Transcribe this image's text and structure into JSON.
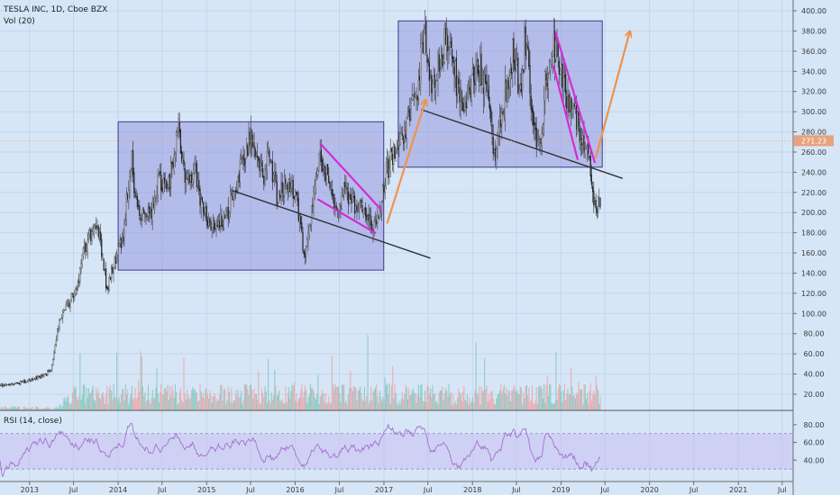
{
  "header": {
    "symbol": "TESLA INC, 1D, Cboe BZX",
    "volume_label": "Vol (20)"
  },
  "rsi": {
    "label": "RSI (14, close)",
    "ticks": [
      80,
      60,
      40
    ],
    "tick_labels": [
      "80.00",
      "60.00",
      "40.00"
    ],
    "band_color": "#c8b8f0",
    "line_color": "#a46fd1"
  },
  "chart_data": {
    "type": "candlestick",
    "y_ticks": [
      20,
      40,
      60,
      80,
      100,
      120,
      140,
      160,
      180,
      200,
      220,
      240,
      260,
      280,
      300,
      320,
      340,
      360,
      380,
      400
    ],
    "y_tick_labels": [
      "20.00",
      "40.00",
      "60.00",
      "80.00",
      "100.00",
      "120.00",
      "140.00",
      "160.00",
      "180.00",
      "200.00",
      "220.00",
      "240.00",
      "260.00",
      "280.00",
      "300.00",
      "320.00",
      "340.00",
      "360.00",
      "380.00",
      "400.00"
    ],
    "ylim": [
      10,
      405
    ],
    "x_range": [
      "2012-09-01",
      "2021-08-15"
    ],
    "x_ticks": [
      {
        "date": "2013-01-01",
        "label": "2013"
      },
      {
        "date": "2013-07-01",
        "label": "Jul"
      },
      {
        "date": "2014-01-01",
        "label": "2014"
      },
      {
        "date": "2014-07-01",
        "label": "Jul"
      },
      {
        "date": "2015-01-01",
        "label": "2015"
      },
      {
        "date": "2015-07-01",
        "label": "Jul"
      },
      {
        "date": "2016-01-01",
        "label": "2016"
      },
      {
        "date": "2016-07-01",
        "label": "Jul"
      },
      {
        "date": "2017-01-01",
        "label": "2017"
      },
      {
        "date": "2017-07-01",
        "label": "Jul"
      },
      {
        "date": "2018-01-01",
        "label": "2018"
      },
      {
        "date": "2018-07-01",
        "label": "Jul"
      },
      {
        "date": "2019-01-01",
        "label": "2019"
      },
      {
        "date": "2019-07-01",
        "label": "Jul"
      },
      {
        "date": "2020-01-01",
        "label": "2020"
      },
      {
        "date": "2020-07-01",
        "label": "Jul"
      },
      {
        "date": "2021-01-01",
        "label": "2021"
      },
      {
        "date": "2021-07-01",
        "label": "Jul"
      }
    ],
    "price_anchors": [
      [
        "2012-09-01",
        29
      ],
      [
        "2012-12-01",
        32
      ],
      [
        "2013-01-15",
        35
      ],
      [
        "2013-03-01",
        38
      ],
      [
        "2013-04-01",
        45
      ],
      [
        "2013-05-01",
        90
      ],
      [
        "2013-06-01",
        105
      ],
      [
        "2013-07-15",
        125
      ],
      [
        "2013-08-15",
        165
      ],
      [
        "2013-09-30",
        190
      ],
      [
        "2013-10-15",
        175
      ],
      [
        "2013-11-15",
        125
      ],
      [
        "2013-12-15",
        150
      ],
      [
        "2014-01-20",
        175
      ],
      [
        "2014-02-25",
        255
      ],
      [
        "2014-03-15",
        210
      ],
      [
        "2014-04-15",
        195
      ],
      [
        "2014-05-20",
        200
      ],
      [
        "2014-06-20",
        235
      ],
      [
        "2014-07-25",
        225
      ],
      [
        "2014-09-05",
        285
      ],
      [
        "2014-10-10",
        225
      ],
      [
        "2014-11-15",
        245
      ],
      [
        "2014-12-15",
        200
      ],
      [
        "2015-01-15",
        190
      ],
      [
        "2015-03-15",
        190
      ],
      [
        "2015-05-01",
        230
      ],
      [
        "2015-06-20",
        265
      ],
      [
        "2015-07-10",
        270
      ],
      [
        "2015-08-25",
        235
      ],
      [
        "2015-09-20",
        260
      ],
      [
        "2015-10-20",
        210
      ],
      [
        "2015-12-01",
        235
      ],
      [
        "2016-01-10",
        210
      ],
      [
        "2016-02-10",
        150
      ],
      [
        "2016-03-15",
        215
      ],
      [
        "2016-04-15",
        255
      ],
      [
        "2016-06-01",
        220
      ],
      [
        "2016-06-25",
        195
      ],
      [
        "2016-07-20",
        225
      ],
      [
        "2016-09-01",
        210
      ],
      [
        "2016-10-15",
        200
      ],
      [
        "2016-11-15",
        185
      ],
      [
        "2016-12-15",
        200
      ],
      [
        "2017-01-15",
        245
      ],
      [
        "2017-02-15",
        265
      ],
      [
        "2017-03-20",
        270
      ],
      [
        "2017-04-15",
        305
      ],
      [
        "2017-05-15",
        320
      ],
      [
        "2017-06-20",
        380
      ],
      [
        "2017-07-15",
        320
      ],
      [
        "2017-08-15",
        350
      ],
      [
        "2017-09-20",
        375
      ],
      [
        "2017-10-20",
        340
      ],
      [
        "2017-11-20",
        310
      ],
      [
        "2017-12-20",
        320
      ],
      [
        "2018-01-20",
        345
      ],
      [
        "2018-03-01",
        330
      ],
      [
        "2018-04-01",
        255
      ],
      [
        "2018-05-01",
        295
      ],
      [
        "2018-06-20",
        365
      ],
      [
        "2018-07-15",
        310
      ],
      [
        "2018-08-07",
        375
      ],
      [
        "2018-09-10",
        285
      ],
      [
        "2018-10-10",
        260
      ],
      [
        "2018-11-01",
        340
      ],
      [
        "2018-12-10",
        365
      ],
      [
        "2019-01-10",
        335
      ],
      [
        "2019-02-01",
        310
      ],
      [
        "2019-02-25",
        300
      ],
      [
        "2019-03-25",
        265
      ],
      [
        "2019-04-15",
        270
      ],
      [
        "2019-05-20",
        205
      ],
      [
        "2019-06-12",
        215
      ]
    ],
    "volume_color_up": "#7ec4b8",
    "volume_color_down": "#f0a0a0",
    "current_price": 271.23,
    "current_price_label": "271.23",
    "annotations": {
      "rect_1": {
        "x": [
          "2014-01-01",
          "2016-12-31"
        ],
        "y": [
          143,
          290
        ]
      },
      "rect_2": {
        "x": [
          "2017-03-01",
          "2019-06-20"
        ],
        "y": [
          245,
          390
        ]
      },
      "support_line_1": {
        "from": [
          "2015-04-15",
          222
        ],
        "to": [
          "2017-07-10",
          155
        ]
      },
      "support_line_2": {
        "from": [
          "2017-06-05",
          302
        ],
        "to": [
          "2019-09-10",
          234
        ]
      },
      "wedge_1_upper": {
        "from": [
          "2016-04-15",
          268
        ],
        "to": [
          "2016-12-20",
          203
        ]
      },
      "wedge_1_lower": {
        "from": [
          "2016-04-05",
          213
        ],
        "to": [
          "2016-11-25",
          180
        ]
      },
      "wedge_2_upper": {
        "from": [
          "2018-12-10",
          378
        ],
        "to": [
          "2019-05-20",
          250
        ]
      },
      "wedge_2_lower": {
        "from": [
          "2018-12-01",
          345
        ],
        "to": [
          "2019-03-10",
          253
        ]
      },
      "arrow_1": {
        "from": [
          "2017-01-15",
          190
        ],
        "to": [
          "2017-06-20",
          310
        ]
      },
      "arrow_2": {
        "from": [
          "2019-05-25",
          255
        ],
        "to": [
          "2019-10-10",
          378
        ]
      },
      "rect_fill": "#8c8ad8",
      "support_color": "#333333",
      "wedge_color": "#d42cd4",
      "arrow_color": "#f0924a"
    }
  }
}
